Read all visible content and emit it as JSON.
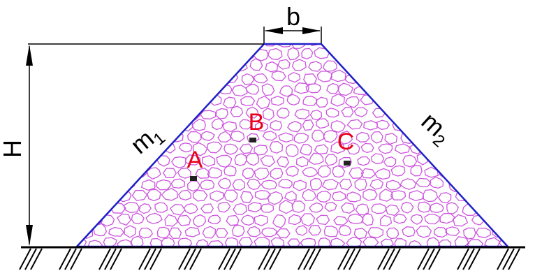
{
  "diagram": {
    "labels": {
      "height": "H",
      "crest_width": "b",
      "left_slope": "m",
      "left_slope_sub": "1",
      "right_slope": "m",
      "right_slope_sub": "2",
      "point_a": "A",
      "point_b": "B",
      "point_c": "C"
    },
    "colors": {
      "outline": "#1f1fc8",
      "fill_stones": "#cc55dd",
      "point_label": "#e8001c",
      "dimension": "#000000"
    }
  }
}
